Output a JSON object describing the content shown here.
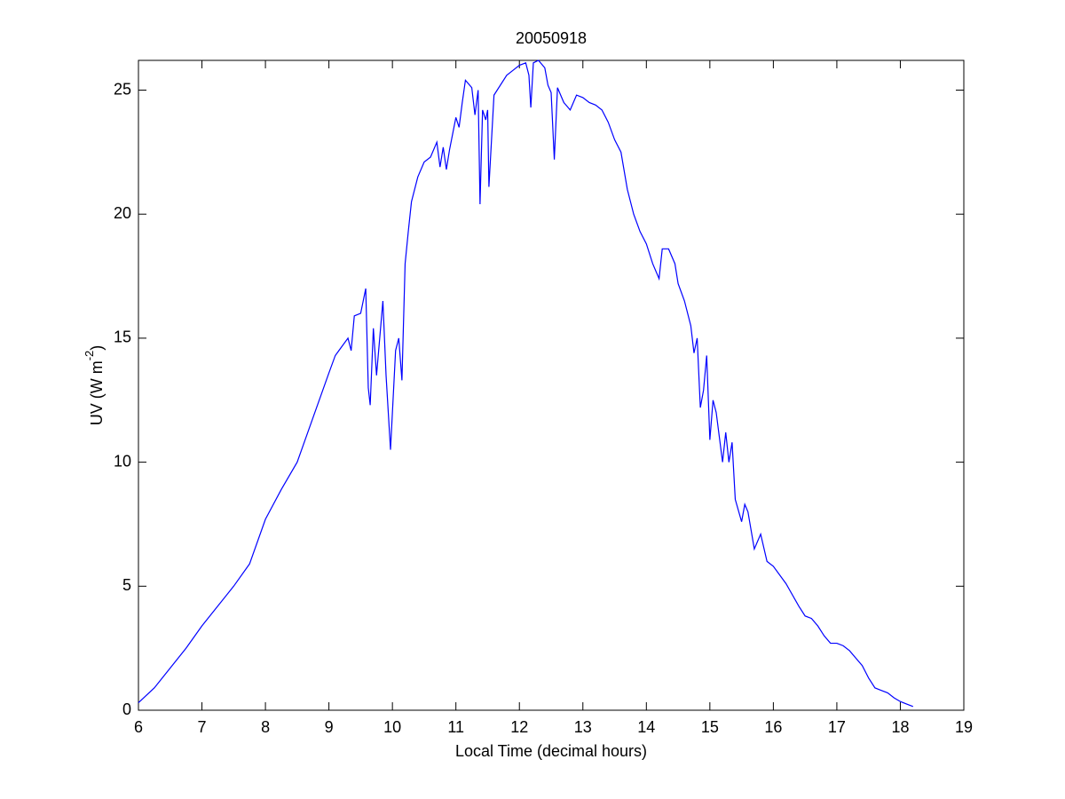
{
  "chart_data": {
    "type": "line",
    "title": "20050918",
    "xlabel": "Local Time (decimal hours)",
    "ylabel": {
      "text": "UV (W m",
      "superscript": "-2",
      "suffix": ")"
    },
    "xlim": [
      6,
      19
    ],
    "xticks": [
      6,
      7,
      8,
      9,
      10,
      11,
      12,
      13,
      14,
      15,
      16,
      17,
      18,
      19
    ],
    "ylim": [
      0,
      26.2
    ],
    "yticks": [
      0,
      5,
      10,
      15,
      20,
      25
    ],
    "grid": false,
    "series": [
      {
        "color": "#0000ff",
        "x": [
          6.0,
          6.25,
          6.5,
          6.75,
          7.0,
          7.25,
          7.5,
          7.75,
          8.0,
          8.25,
          8.5,
          8.75,
          9.0,
          9.1,
          9.3,
          9.35,
          9.4,
          9.5,
          9.58,
          9.62,
          9.65,
          9.7,
          9.75,
          9.8,
          9.85,
          9.9,
          9.97,
          10.05,
          10.1,
          10.15,
          10.2,
          10.25,
          10.3,
          10.4,
          10.5,
          10.6,
          10.7,
          10.75,
          10.8,
          10.85,
          10.9,
          11.0,
          11.05,
          11.1,
          11.15,
          11.25,
          11.3,
          11.35,
          11.38,
          11.42,
          11.47,
          11.5,
          11.52,
          11.6,
          11.8,
          11.9,
          12.0,
          12.1,
          12.15,
          12.18,
          12.22,
          12.3,
          12.4,
          12.45,
          12.5,
          12.55,
          12.6,
          12.7,
          12.8,
          12.9,
          13.0,
          13.1,
          13.2,
          13.3,
          13.4,
          13.5,
          13.6,
          13.7,
          13.8,
          13.9,
          14.0,
          14.1,
          14.2,
          14.25,
          14.35,
          14.45,
          14.5,
          14.6,
          14.7,
          14.75,
          14.8,
          14.85,
          14.9,
          14.95,
          15.0,
          15.05,
          15.1,
          15.15,
          15.2,
          15.25,
          15.3,
          15.35,
          15.4,
          15.5,
          15.55,
          15.6,
          15.7,
          15.8,
          15.9,
          16.0,
          16.2,
          16.4,
          16.5,
          16.6,
          16.7,
          16.8,
          16.9,
          17.0,
          17.1,
          17.2,
          17.3,
          17.4,
          17.5,
          17.6,
          17.7,
          17.8,
          17.9,
          18.0,
          18.1,
          18.2
        ],
        "values": [
          0.3,
          0.9,
          1.7,
          2.5,
          3.4,
          4.2,
          5.0,
          5.9,
          7.7,
          8.9,
          10.0,
          11.8,
          13.6,
          14.3,
          15.0,
          14.5,
          15.9,
          16.0,
          17.0,
          13.0,
          12.3,
          15.4,
          13.5,
          15.0,
          16.5,
          13.5,
          10.5,
          14.5,
          15.0,
          13.3,
          18.0,
          19.3,
          20.5,
          21.5,
          22.1,
          22.3,
          22.9,
          21.9,
          22.7,
          21.8,
          22.6,
          23.9,
          23.5,
          24.5,
          25.4,
          25.1,
          24.0,
          25.0,
          20.4,
          24.2,
          23.8,
          24.2,
          21.1,
          24.8,
          25.6,
          25.8,
          26.0,
          26.1,
          25.6,
          24.3,
          26.1,
          26.2,
          25.9,
          25.2,
          24.9,
          22.2,
          25.1,
          24.5,
          24.2,
          24.8,
          24.7,
          24.5,
          24.4,
          24.2,
          23.7,
          23.0,
          22.5,
          21.0,
          20.0,
          19.3,
          18.8,
          18.0,
          17.4,
          18.6,
          18.6,
          18.0,
          17.2,
          16.5,
          15.5,
          14.4,
          15.0,
          12.2,
          12.9,
          14.3,
          10.9,
          12.5,
          12.0,
          11.0,
          10.0,
          11.2,
          10.0,
          10.8,
          8.5,
          7.6,
          8.3,
          8.0,
          6.5,
          7.1,
          6.0,
          5.8,
          5.1,
          4.2,
          3.8,
          3.7,
          3.4,
          3.0,
          2.7,
          2.7,
          2.6,
          2.4,
          2.1,
          1.8,
          1.3,
          0.9,
          0.8,
          0.7,
          0.5,
          0.35,
          0.25,
          0.15
        ]
      }
    ]
  }
}
